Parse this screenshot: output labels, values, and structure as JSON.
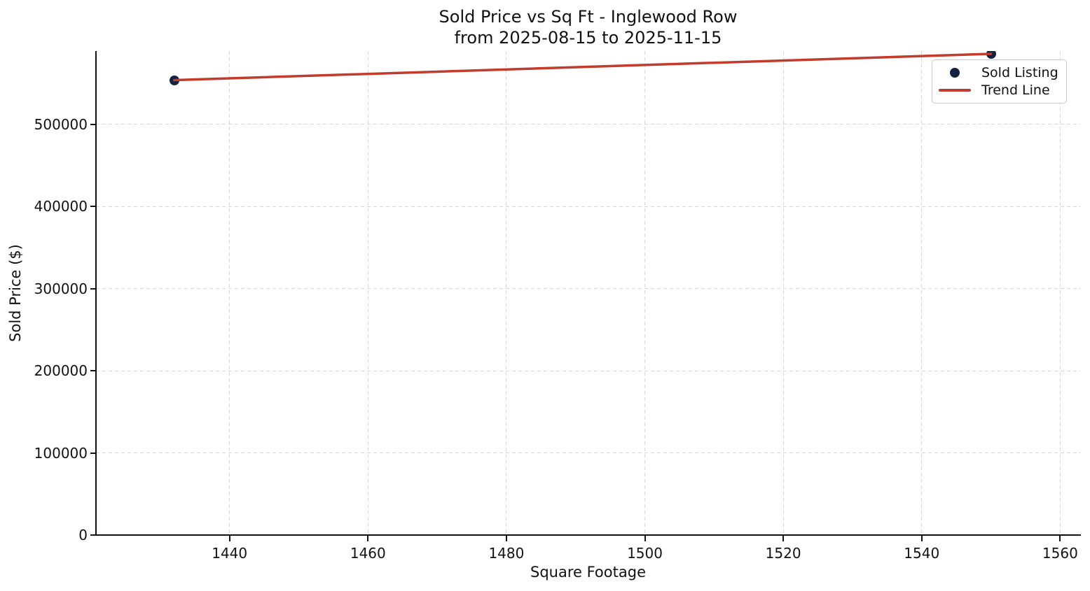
{
  "figure": {
    "title_line1": "Sold Price vs Sq Ft - Inglewood Row",
    "title_line2": "from 2025-08-15 to 2025-11-15",
    "xlabel": "Square Footage",
    "ylabel": "Sold Price ($)"
  },
  "legend": {
    "position": "upper right",
    "items": [
      {
        "label": "Sold Listing",
        "marker": "dot",
        "color": "#142440"
      },
      {
        "label": "Trend Line",
        "marker": "line",
        "color": "#c23b2c"
      }
    ]
  },
  "chart_data": {
    "type": "scatter",
    "title": "Sold Price vs Sq Ft - Inglewood Row\nfrom 2025-08-15 to 2025-11-15",
    "xlabel": "Square Footage",
    "ylabel": "Sold Price ($)",
    "series": [
      {
        "name": "Sold Listing",
        "type": "scatter",
        "color": "#142440",
        "points": [
          {
            "x": 1432,
            "y": 554000
          },
          {
            "x": 1550,
            "y": 586000
          }
        ]
      },
      {
        "name": "Trend Line",
        "type": "line",
        "color": "#c23b2c",
        "points": [
          {
            "x": 1432,
            "y": 554000
          },
          {
            "x": 1550,
            "y": 586000
          }
        ]
      }
    ],
    "xticks": [
      1440,
      1460,
      1480,
      1500,
      1520,
      1540,
      1560
    ],
    "yticks": [
      0,
      100000,
      200000,
      300000,
      400000,
      500000
    ],
    "xlim": [
      1420.7,
      1562.9
    ],
    "ylim": [
      0,
      589400
    ],
    "grid": true,
    "grid_style": "dashed",
    "legend_position": "upper right"
  },
  "colors": {
    "marker": "#142440",
    "trend": "#c23b2c",
    "grid": "#d7d7d7",
    "spine": "#111111",
    "text": "#111111",
    "background": "#ffffff"
  }
}
